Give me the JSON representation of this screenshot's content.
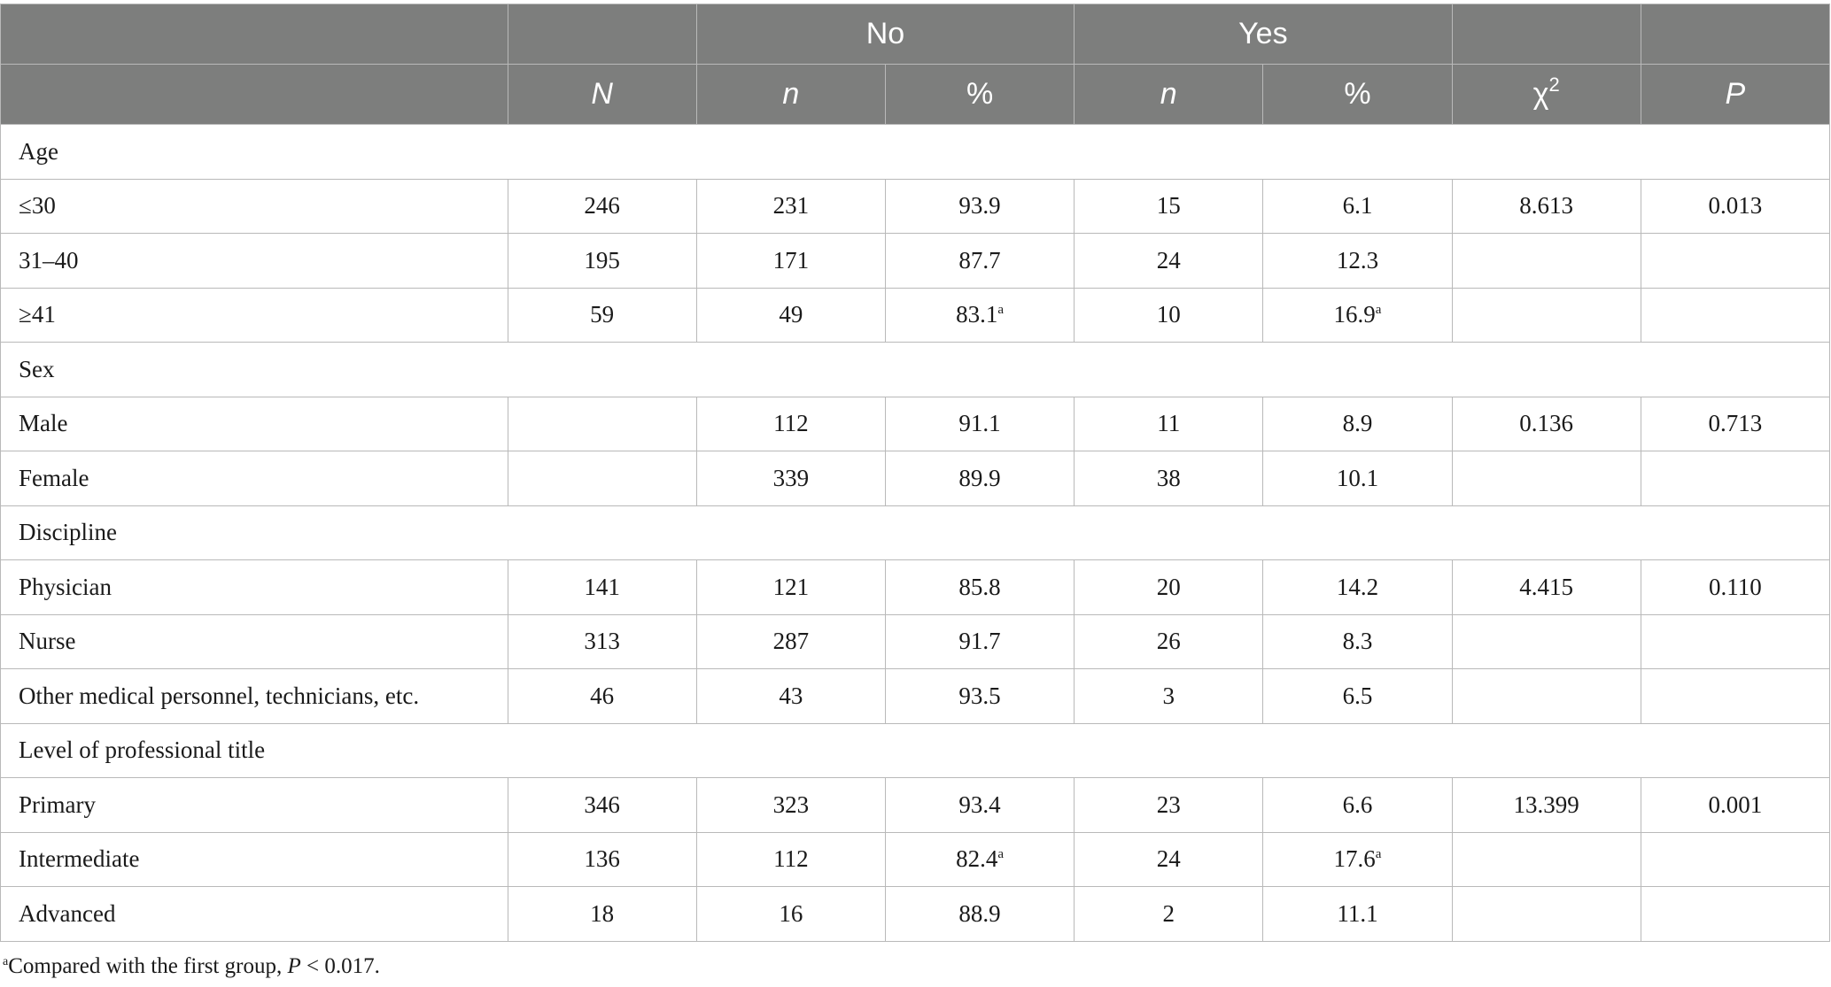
{
  "header": {
    "group_no": "No",
    "group_yes": "Yes",
    "col_N": "N",
    "col_no_n": "n",
    "col_no_pct": "%",
    "col_yes_n": "n",
    "col_yes_pct": "%",
    "col_chi": "χ",
    "col_chi_sup": "2",
    "col_P": "P"
  },
  "sections": {
    "age": {
      "title": "Age",
      "rows": [
        {
          "label": "≤30",
          "N": "246",
          "no_n": "231",
          "no_pct": "93.9",
          "no_pct_sup": "",
          "yes_n": "15",
          "yes_pct": "6.1",
          "yes_pct_sup": "",
          "chi": "8.613",
          "p": "0.013"
        },
        {
          "label": "31–40",
          "N": "195",
          "no_n": "171",
          "no_pct": "87.7",
          "no_pct_sup": "",
          "yes_n": "24",
          "yes_pct": "12.3",
          "yes_pct_sup": "",
          "chi": "",
          "p": ""
        },
        {
          "label": "≥41",
          "N": "59",
          "no_n": "49",
          "no_pct": "83.1",
          "no_pct_sup": "a",
          "yes_n": "10",
          "yes_pct": "16.9",
          "yes_pct_sup": "a",
          "chi": "",
          "p": ""
        }
      ]
    },
    "sex": {
      "title": "Sex",
      "rows": [
        {
          "label": "Male",
          "N": "",
          "no_n": "112",
          "no_pct": "91.1",
          "no_pct_sup": "",
          "yes_n": "11",
          "yes_pct": "8.9",
          "yes_pct_sup": "",
          "chi": "0.136",
          "p": "0.713"
        },
        {
          "label": "Female",
          "N": "",
          "no_n": "339",
          "no_pct": "89.9",
          "no_pct_sup": "",
          "yes_n": "38",
          "yes_pct": "10.1",
          "yes_pct_sup": "",
          "chi": "",
          "p": ""
        }
      ]
    },
    "discipline": {
      "title": "Discipline",
      "rows": [
        {
          "label": "Physician",
          "N": "141",
          "no_n": "121",
          "no_pct": "85.8",
          "no_pct_sup": "",
          "yes_n": "20",
          "yes_pct": "14.2",
          "yes_pct_sup": "",
          "chi": "4.415",
          "p": "0.110"
        },
        {
          "label": "Nurse",
          "N": "313",
          "no_n": "287",
          "no_pct": "91.7",
          "no_pct_sup": "",
          "yes_n": "26",
          "yes_pct": "8.3",
          "yes_pct_sup": "",
          "chi": "",
          "p": ""
        },
        {
          "label": "Other medical personnel, technicians, etc.",
          "N": "46",
          "no_n": "43",
          "no_pct": "93.5",
          "no_pct_sup": "",
          "yes_n": "3",
          "yes_pct": "6.5",
          "yes_pct_sup": "",
          "chi": "",
          "p": ""
        }
      ]
    },
    "title_level": {
      "title": "Level of professional title",
      "rows": [
        {
          "label": "Primary",
          "N": "346",
          "no_n": "323",
          "no_pct": "93.4",
          "no_pct_sup": "",
          "yes_n": "23",
          "yes_pct": "6.6",
          "yes_pct_sup": "",
          "chi": "13.399",
          "p": "0.001"
        },
        {
          "label": "Intermediate",
          "N": "136",
          "no_n": "112",
          "no_pct": "82.4",
          "no_pct_sup": "a",
          "yes_n": "24",
          "yes_pct": "17.6",
          "yes_pct_sup": "a",
          "chi": "",
          "p": ""
        },
        {
          "label": "Advanced",
          "N": "18",
          "no_n": "16",
          "no_pct": "88.9",
          "no_pct_sup": "",
          "yes_n": "2",
          "yes_pct": "11.1",
          "yes_pct_sup": "",
          "chi": "",
          "p": ""
        }
      ]
    }
  },
  "footnote": {
    "marker": "a",
    "text": "Compared with the first group, ",
    "p_symbol": "P",
    "p_value": " < 0.017."
  }
}
